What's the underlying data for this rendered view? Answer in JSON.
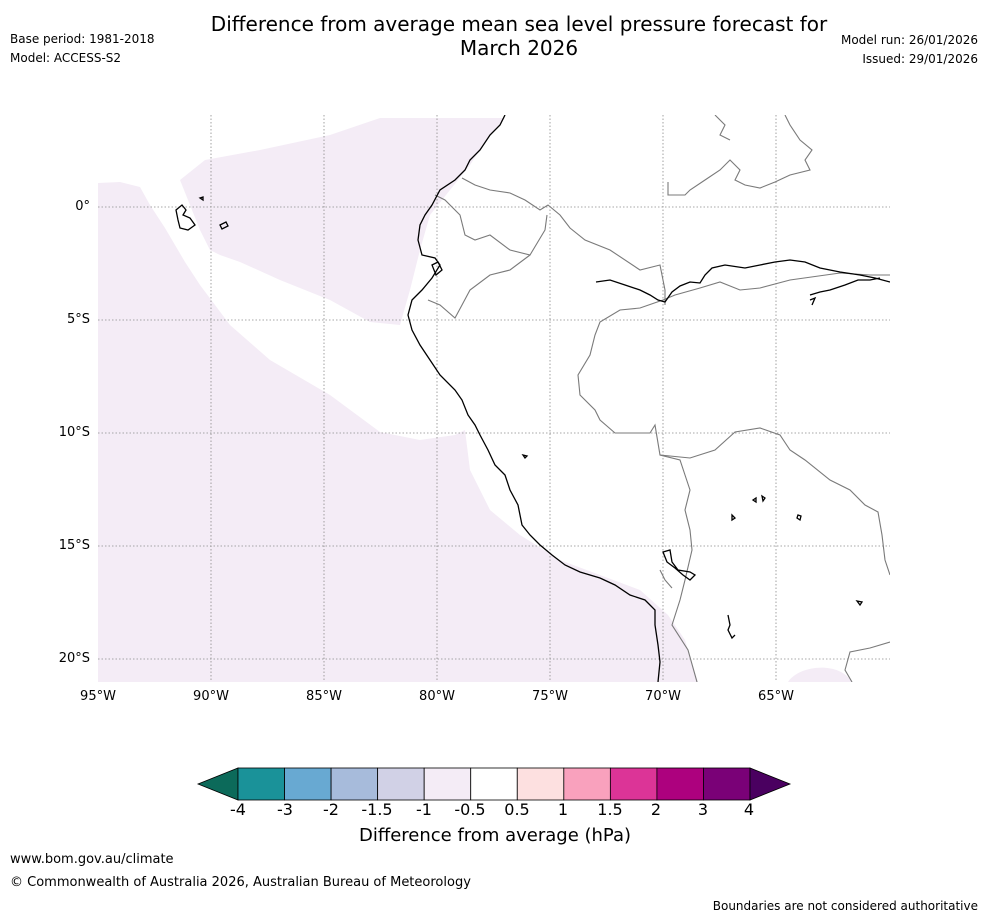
{
  "header": {
    "base_period": "Base period: 1981-2018",
    "model": "Model: ACCESS-S2",
    "title_line1": "Difference from average mean sea level pressure forecast for",
    "title_line2": "March 2026",
    "model_run": "Model run: 26/01/2026",
    "issued": "Issued: 29/01/2026"
  },
  "map": {
    "lat_labels": [
      "0°",
      "5°S",
      "10°S",
      "15°S",
      "20°S"
    ],
    "lon_labels": [
      "95°W",
      "90°W",
      "85°W",
      "80°W",
      "75°W",
      "70°W",
      "65°W"
    ],
    "colors": {
      "ocean_anomaly": "#f4ecf6",
      "land": "#ffffff",
      "coastline": "#000000",
      "border": "#7a7a7a",
      "grid": "#8a8a8a"
    }
  },
  "colorbar": {
    "ticks": [
      "-4",
      "-3",
      "-2",
      "-1.5",
      "-1",
      "-0.5",
      "0.5",
      "1",
      "1.5",
      "2",
      "3",
      "4"
    ],
    "colors": [
      "#0c6a5a",
      "#1a9299",
      "#68a9d2",
      "#a7bbdb",
      "#d1d1e6",
      "#f4ecf6",
      "#ffffff",
      "#fde0e0",
      "#f9a1bd",
      "#dc3497",
      "#ad017e",
      "#7a0177",
      "#4a0060"
    ],
    "label": "Difference from average (hPa)"
  },
  "footer": {
    "url": "www.bom.gov.au/climate",
    "copyright": "© Commonwealth of Australia 2026, Australian Bureau of Meteorology",
    "disclaimer": "Boundaries are not considered authoritative"
  }
}
